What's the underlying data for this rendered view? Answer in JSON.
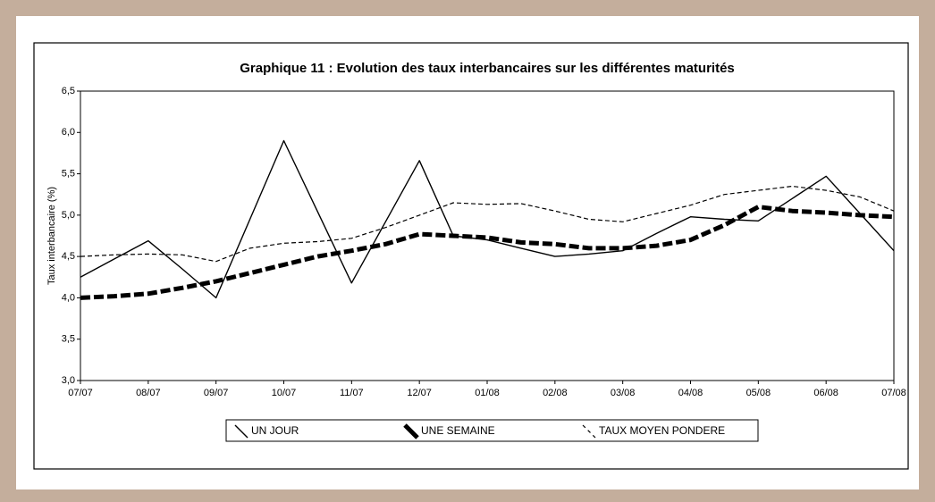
{
  "chart_data": {
    "type": "line",
    "title": "Graphique 11 : Evolution des taux interbancaires sur les différentes maturités",
    "ylabel": "Taux interbancaire (%)",
    "categories": [
      "07/07",
      null,
      "08/07",
      null,
      "09/07",
      null,
      "10/07",
      null,
      "11/07",
      null,
      "12/07",
      null,
      "01/08",
      null,
      "02/08",
      null,
      "03/08",
      null,
      "04/08",
      null,
      "05/08",
      null,
      "06/08",
      null,
      "07/08"
    ],
    "series": [
      {
        "name": "UN JOUR",
        "color": "#000000",
        "values": [
          4.25,
          4.47,
          4.69,
          4.35,
          4.0,
          4.95,
          5.9,
          5.04,
          4.18,
          4.92,
          5.66,
          4.75,
          4.7,
          4.6,
          4.5,
          4.53,
          4.57,
          4.78,
          4.98,
          4.95,
          4.93,
          5.2,
          5.47,
          5.02,
          4.57
        ]
      },
      {
        "name": "UNE SEMAINE",
        "color": "#000000",
        "values": [
          4.0,
          4.02,
          4.05,
          4.12,
          4.2,
          4.3,
          4.4,
          4.5,
          4.57,
          4.65,
          4.77,
          4.75,
          4.73,
          4.67,
          4.65,
          4.6,
          4.6,
          4.63,
          4.7,
          4.88,
          5.1,
          5.05,
          5.03,
          5.0,
          4.98
        ]
      },
      {
        "name": "TAUX MOYEN PONDERE",
        "color": "#000000",
        "values": [
          4.5,
          4.52,
          4.53,
          4.52,
          4.44,
          4.6,
          4.66,
          4.68,
          4.72,
          4.85,
          5.0,
          5.15,
          5.13,
          5.14,
          5.05,
          4.95,
          4.92,
          5.02,
          5.12,
          5.25,
          5.3,
          5.35,
          5.3,
          5.22,
          5.05
        ]
      }
    ],
    "ylim": [
      3.0,
      6.5
    ],
    "yticks": [
      {
        "value": 3.0,
        "label": "3,0"
      },
      {
        "value": 3.5,
        "label": "3,5"
      },
      {
        "value": 4.0,
        "label": "4,0"
      },
      {
        "value": 4.5,
        "label": "4,5"
      },
      {
        "value": 5.0,
        "label": "5,0"
      },
      {
        "value": 5.5,
        "label": "5,5"
      },
      {
        "value": 6.0,
        "label": "6,0"
      },
      {
        "value": 6.5,
        "label": "6,5"
      }
    ],
    "legend": "bottom"
  }
}
